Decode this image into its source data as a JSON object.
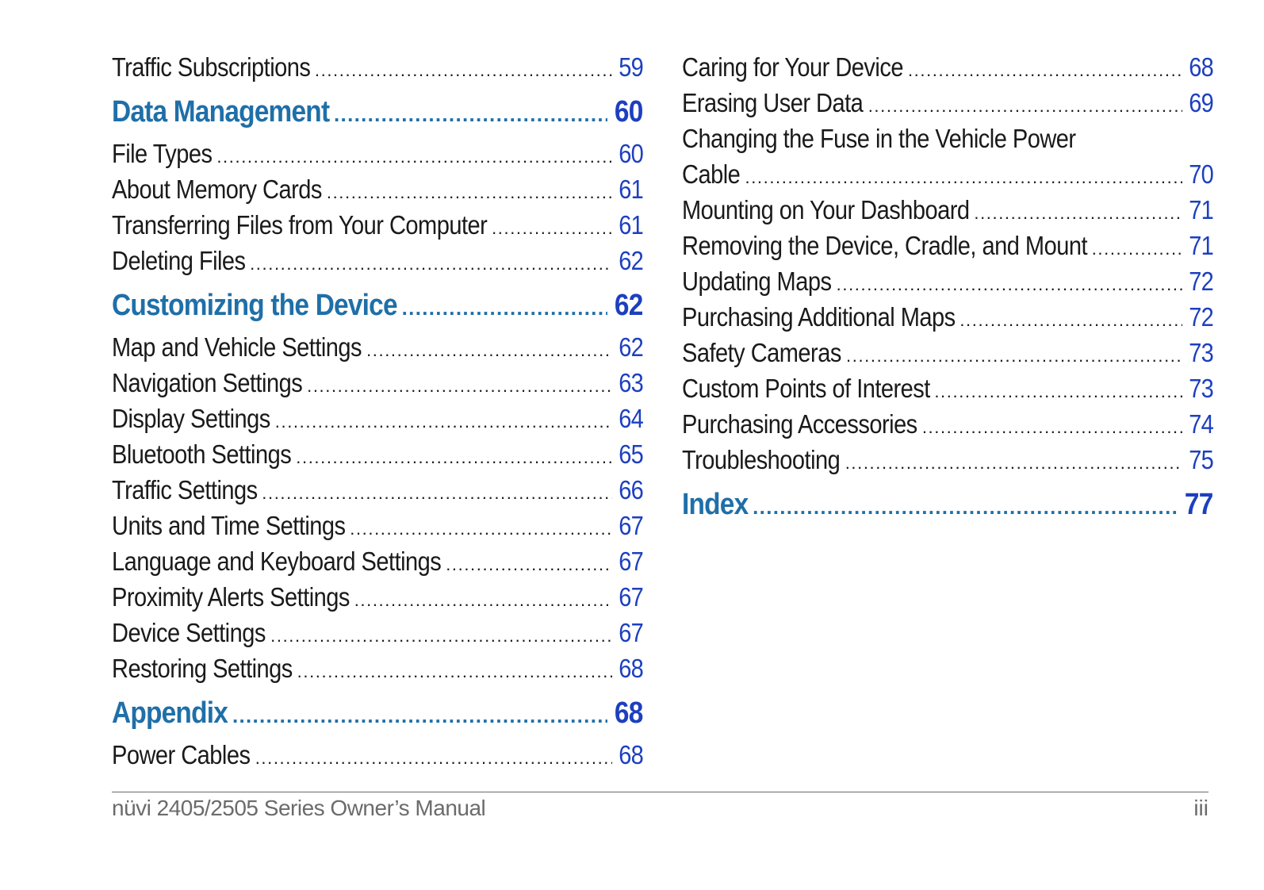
{
  "left_column": [
    {
      "type": "entry",
      "title": "Traffic Subscriptions",
      "page": "59"
    },
    {
      "type": "section",
      "title": "Data Management",
      "page": "60"
    },
    {
      "type": "entry",
      "title": "File Types",
      "page": "60"
    },
    {
      "type": "entry",
      "title": "About Memory Cards",
      "page": "61"
    },
    {
      "type": "entry",
      "title": "Transferring Files from Your Computer",
      "page": "61"
    },
    {
      "type": "entry",
      "title": "Deleting Files",
      "page": "62"
    },
    {
      "type": "section",
      "title": "Customizing the Device",
      "page": "62"
    },
    {
      "type": "entry",
      "title": "Map and Vehicle Settings",
      "page": "62"
    },
    {
      "type": "entry",
      "title": "Navigation Settings",
      "page": "63"
    },
    {
      "type": "entry",
      "title": "Display Settings",
      "page": "64"
    },
    {
      "type": "entry",
      "title": "Bluetooth Settings",
      "page": "65"
    },
    {
      "type": "entry",
      "title": "Traffic Settings",
      "page": "66"
    },
    {
      "type": "entry",
      "title": "Units and Time Settings",
      "page": "67"
    },
    {
      "type": "entry",
      "title": "Language and Keyboard Settings",
      "page": "67"
    },
    {
      "type": "entry",
      "title": "Proximity Alerts Settings",
      "page": "67"
    },
    {
      "type": "entry",
      "title": "Device Settings",
      "page": "67"
    },
    {
      "type": "entry",
      "title": "Restoring Settings",
      "page": "68"
    },
    {
      "type": "section",
      "title": "Appendix",
      "page": "68"
    },
    {
      "type": "entry",
      "title": "Power Cables",
      "page": "68"
    }
  ],
  "right_column": [
    {
      "type": "entry",
      "title": "Caring for Your Device",
      "page": "68"
    },
    {
      "type": "entry",
      "title": "Erasing User Data",
      "page": "69"
    },
    {
      "type": "entry-wrapped",
      "title_line1": "Changing the Fuse in the Vehicle Power",
      "title_line2": "Cable",
      "page": "70"
    },
    {
      "type": "entry",
      "title": "Mounting on Your Dashboard",
      "page": "71"
    },
    {
      "type": "entry",
      "title": "Removing the Device, Cradle, and Mount",
      "page": "71"
    },
    {
      "type": "entry",
      "title": "Updating Maps",
      "page": "72"
    },
    {
      "type": "entry",
      "title": "Purchasing Additional Maps",
      "page": "72"
    },
    {
      "type": "entry",
      "title": "Safety Cameras",
      "page": "73"
    },
    {
      "type": "entry",
      "title": "Custom Points of Interest",
      "page": "73"
    },
    {
      "type": "entry",
      "title": "Purchasing Accessories",
      "page": "74"
    },
    {
      "type": "entry",
      "title": "Troubleshooting",
      "page": "75"
    },
    {
      "type": "section",
      "title": "Index",
      "page": "77"
    }
  ],
  "footer": {
    "manual_title": "nüvi 2405/2505 Series Owner’s Manual",
    "page_number": "iii"
  }
}
